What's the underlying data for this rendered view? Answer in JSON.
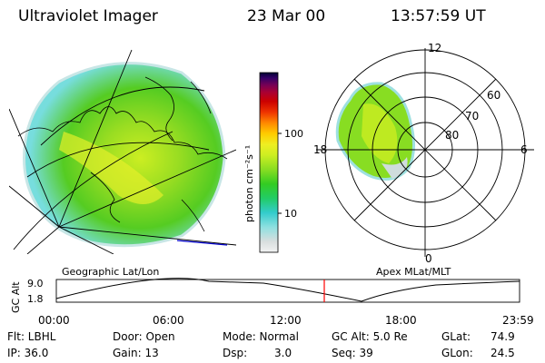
{
  "header": {
    "instrument": "Ultraviolet Imager",
    "date": "23 Mar 00",
    "time": "13:57:59 UT"
  },
  "colorbar": {
    "unit_label": "photon cm⁻²s⁻¹",
    "ticks": [
      "100",
      "10"
    ],
    "stops": [
      "#f2f2f2",
      "#d8dede",
      "#8ee0e0",
      "#33cccc",
      "#22cc66",
      "#33cc22",
      "#88dd22",
      "#ccee22",
      "#eeee22",
      "#ffcc00",
      "#ff8800",
      "#ee3300",
      "#cc0000",
      "#aa0033",
      "#770055",
      "#330066",
      "#000033"
    ]
  },
  "polar_plot": {
    "mlt_labels": [
      "12",
      "18",
      "6",
      "0"
    ],
    "lat_labels": [
      "60",
      "70",
      "80"
    ]
  },
  "timeline": {
    "left_title": "Geographic Lat/Lon",
    "right_title": "Apex MLat/MLT",
    "axis_label": "GC Alt",
    "y_ticks": [
      "9.0",
      "1.8"
    ],
    "x_ticks": [
      "00:00",
      "06:00",
      "12:00",
      "18:00",
      "23:59"
    ],
    "current_marker": "13:57:59",
    "marker_color": "#ff0000"
  },
  "info": {
    "flt_label": "Flt: LBHL",
    "ip_label": "IP: 36.0",
    "door_label": "Door: Open",
    "gain_label": "Gain: 13",
    "mode_label": "Mode: Normal",
    "dsp_label": "Dsp:",
    "dsp_value": "3.0",
    "gcalt_label": "GC Alt: 5.0 Re",
    "seq_label": "Seq: 39",
    "glat_label": "GLat:",
    "glat_value": "74.9",
    "glon_label": "GLon:",
    "glon_value": "24.5"
  }
}
